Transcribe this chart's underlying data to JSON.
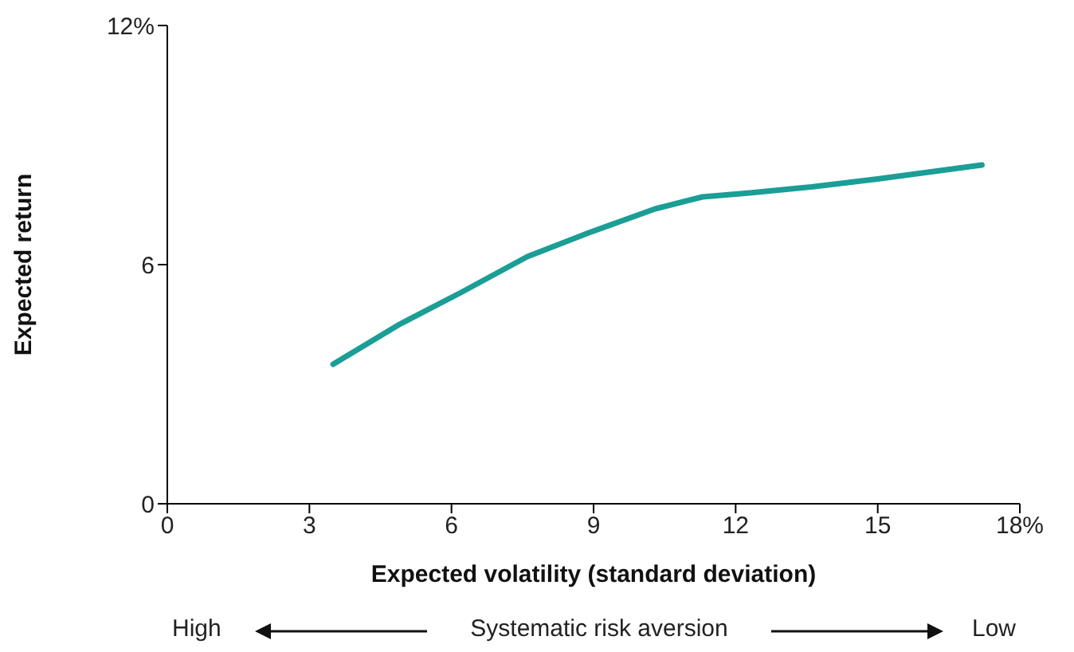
{
  "chart_data": {
    "type": "line",
    "xlabel": "Expected volatility (standard deviation)",
    "ylabel": "Expected return",
    "x": [
      3.5,
      4.9,
      6.2,
      7.6,
      8.9,
      10.3,
      11.3,
      12.3,
      13.6,
      15.0,
      17.2
    ],
    "series": [
      {
        "color": "#1a9e96",
        "values": [
          3.5,
          4.5,
          5.3,
          6.2,
          6.8,
          7.4,
          7.7,
          7.8,
          7.95,
          8.15,
          8.5
        ]
      }
    ],
    "xlim": [
      0,
      18
    ],
    "xticks": [
      0,
      3,
      6,
      9,
      12,
      15,
      {
        "value": 18,
        "label": "18%"
      }
    ],
    "ylim": [
      0,
      12
    ],
    "yticks": [
      0,
      6,
      {
        "value": 12,
        "label": "12%"
      }
    ],
    "grid": false,
    "legend": false,
    "marker": "none",
    "line_style": "solid",
    "annotations": [
      "High",
      "Systematic risk aversion",
      "Low"
    ]
  }
}
